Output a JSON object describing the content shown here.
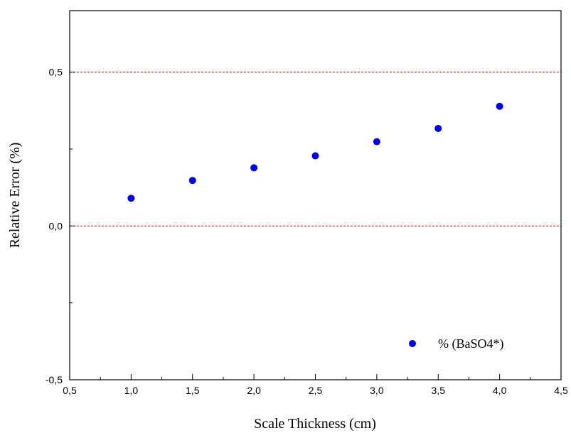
{
  "chart_data": {
    "type": "scatter",
    "title": "",
    "xlabel": "Scale Thickness (cm)",
    "ylabel": "Relative Error (%)",
    "xlim": [
      0.5,
      4.5
    ],
    "ylim": [
      -0.5,
      0.7
    ],
    "x_ticks": [
      "0,5",
      "1,0",
      "1,5",
      "2,0",
      "2,5",
      "3,0",
      "3,5",
      "4,0",
      "4,5"
    ],
    "x_tick_values": [
      0.5,
      1.0,
      1.5,
      2.0,
      2.5,
      3.0,
      3.5,
      4.0,
      4.5
    ],
    "y_ticks": [
      "-0,5",
      "0,0",
      "0,5"
    ],
    "y_tick_values": [
      -0.5,
      0.0,
      0.5
    ],
    "reference_lines": [
      0.0,
      0.5
    ],
    "reference_line_color": "#cc0000",
    "series": [
      {
        "name": "% (BaSO4*)",
        "color": "#0000ee",
        "x": [
          1.0,
          1.5,
          2.0,
          2.5,
          3.0,
          3.5,
          4.0
        ],
        "y": [
          0.09,
          0.148,
          0.189,
          0.228,
          0.274,
          0.317,
          0.389
        ]
      }
    ],
    "legend_position": "bottom-right",
    "grid": false
  }
}
